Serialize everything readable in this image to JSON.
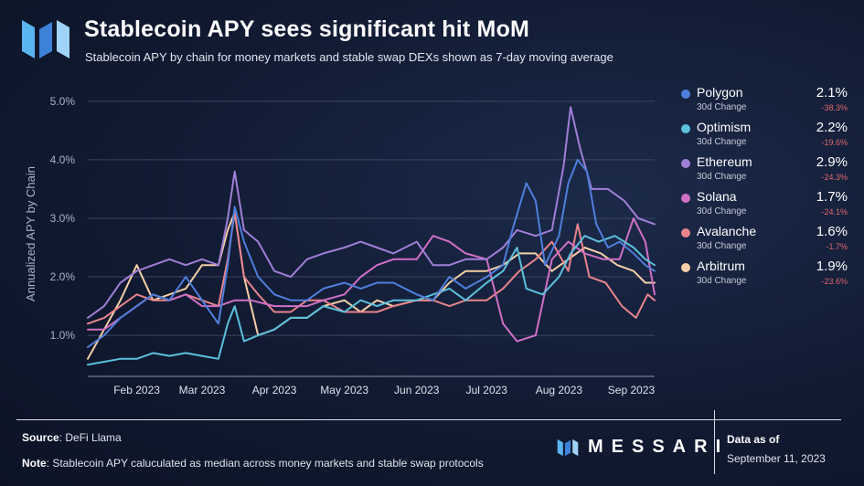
{
  "header": {
    "title": "Stablecoin APY sees significant hit MoM",
    "subtitle": "Stablecoin APY by chain for money markets and stable swap DEXs shown as 7-day moving average"
  },
  "colors": {
    "Polygon": "#4f7fdc",
    "Optimism": "#5cc0dc",
    "Ethereum": "#a07fd6",
    "Solana": "#d070c6",
    "Avalanche": "#e8848c",
    "Arbitrum": "#f4cfa8",
    "negative": "#e0676c"
  },
  "legend": [
    {
      "name": "Polygon",
      "value": "2.1%",
      "sublabel": "30d Change",
      "change": "-38.3%"
    },
    {
      "name": "Optimism",
      "value": "2.2%",
      "sublabel": "30d Change",
      "change": "-19.6%"
    },
    {
      "name": "Ethereum",
      "value": "2.9%",
      "sublabel": "30d Change",
      "change": "-24.3%"
    },
    {
      "name": "Solana",
      "value": "1.7%",
      "sublabel": "30d Change",
      "change": "-24.1%"
    },
    {
      "name": "Avalanche",
      "value": "1.6%",
      "sublabel": "30d Change",
      "change": "-1.7%"
    },
    {
      "name": "Arbitrum",
      "value": "1.9%",
      "sublabel": "30d Change",
      "change": "-23.6%"
    }
  ],
  "footer": {
    "source_label": "Source",
    "source_text": ": DeFi Llama",
    "note_label": "Note",
    "note_text": ": Stablecoin APY caluculated as median across money markets and stable swap protocols",
    "brand": "MESSARI",
    "asof_label": "Data as of",
    "asof_date": "September 11, 2023"
  },
  "chart_data": {
    "type": "line",
    "title": "Stablecoin APY sees significant hit MoM",
    "ylabel": "Annualized APY by Chain",
    "xlabel": "",
    "ylim": [
      0.3,
      5.2
    ],
    "yticks": [
      1.0,
      2.0,
      3.0,
      4.0,
      5.0
    ],
    "ytick_labels": [
      "1.0%",
      "2.0%",
      "3.0%",
      "4.0%",
      "5.0%"
    ],
    "xlim": [
      "2023-01-11",
      "2023-09-11"
    ],
    "xticks": [
      "2023-02-01",
      "2023-03-01",
      "2023-04-01",
      "2023-05-01",
      "2023-06-01",
      "2023-07-01",
      "2023-08-01",
      "2023-09-01"
    ],
    "xtick_labels": [
      "Feb 2023",
      "Mar 2023",
      "Apr 2023",
      "May 2023",
      "Jun 2023",
      "Jul 2023",
      "Aug 2023",
      "Sep 2023"
    ],
    "grid": "horizontal",
    "legend_position": "right",
    "series": [
      {
        "name": "Polygon",
        "points": [
          [
            "2023-01-11",
            0.8
          ],
          [
            "2023-01-18",
            1.0
          ],
          [
            "2023-01-25",
            1.3
          ],
          [
            "2023-02-01",
            1.5
          ],
          [
            "2023-02-08",
            1.7
          ],
          [
            "2023-02-15",
            1.6
          ],
          [
            "2023-02-22",
            2.0
          ],
          [
            "2023-03-01",
            1.6
          ],
          [
            "2023-03-08",
            1.2
          ],
          [
            "2023-03-12",
            2.2
          ],
          [
            "2023-03-15",
            3.2
          ],
          [
            "2023-03-19",
            2.6
          ],
          [
            "2023-03-25",
            2.0
          ],
          [
            "2023-04-01",
            1.7
          ],
          [
            "2023-04-08",
            1.6
          ],
          [
            "2023-04-15",
            1.6
          ],
          [
            "2023-04-22",
            1.8
          ],
          [
            "2023-05-01",
            1.9
          ],
          [
            "2023-05-08",
            1.8
          ],
          [
            "2023-05-15",
            1.9
          ],
          [
            "2023-05-22",
            1.9
          ],
          [
            "2023-06-01",
            1.7
          ],
          [
            "2023-06-08",
            1.6
          ],
          [
            "2023-06-15",
            2.0
          ],
          [
            "2023-06-22",
            1.8
          ],
          [
            "2023-07-01",
            2.0
          ],
          [
            "2023-07-08",
            2.2
          ],
          [
            "2023-07-12",
            2.8
          ],
          [
            "2023-07-18",
            3.6
          ],
          [
            "2023-07-22",
            3.3
          ],
          [
            "2023-07-26",
            2.2
          ],
          [
            "2023-08-01",
            2.7
          ],
          [
            "2023-08-05",
            3.6
          ],
          [
            "2023-08-09",
            4.0
          ],
          [
            "2023-08-13",
            3.8
          ],
          [
            "2023-08-17",
            2.9
          ],
          [
            "2023-08-22",
            2.5
          ],
          [
            "2023-08-27",
            2.6
          ],
          [
            "2023-09-02",
            2.4
          ],
          [
            "2023-09-07",
            2.2
          ],
          [
            "2023-09-11",
            2.1
          ]
        ]
      },
      {
        "name": "Optimism",
        "points": [
          [
            "2023-01-11",
            0.5
          ],
          [
            "2023-01-18",
            0.55
          ],
          [
            "2023-01-25",
            0.6
          ],
          [
            "2023-02-01",
            0.6
          ],
          [
            "2023-02-08",
            0.7
          ],
          [
            "2023-02-15",
            0.65
          ],
          [
            "2023-02-22",
            0.7
          ],
          [
            "2023-03-01",
            0.65
          ],
          [
            "2023-03-08",
            0.6
          ],
          [
            "2023-03-12",
            1.2
          ],
          [
            "2023-03-15",
            1.5
          ],
          [
            "2023-03-19",
            0.9
          ],
          [
            "2023-03-25",
            1.0
          ],
          [
            "2023-04-01",
            1.1
          ],
          [
            "2023-04-08",
            1.3
          ],
          [
            "2023-04-15",
            1.3
          ],
          [
            "2023-04-22",
            1.5
          ],
          [
            "2023-05-01",
            1.4
          ],
          [
            "2023-05-08",
            1.6
          ],
          [
            "2023-05-15",
            1.5
          ],
          [
            "2023-05-22",
            1.6
          ],
          [
            "2023-06-01",
            1.6
          ],
          [
            "2023-06-08",
            1.7
          ],
          [
            "2023-06-15",
            1.8
          ],
          [
            "2023-06-22",
            1.6
          ],
          [
            "2023-07-01",
            1.9
          ],
          [
            "2023-07-08",
            2.1
          ],
          [
            "2023-07-14",
            2.5
          ],
          [
            "2023-07-18",
            1.8
          ],
          [
            "2023-07-25",
            1.7
          ],
          [
            "2023-08-01",
            2.0
          ],
          [
            "2023-08-06",
            2.4
          ],
          [
            "2023-08-12",
            2.7
          ],
          [
            "2023-08-18",
            2.6
          ],
          [
            "2023-08-25",
            2.7
          ],
          [
            "2023-09-02",
            2.5
          ],
          [
            "2023-09-07",
            2.3
          ],
          [
            "2023-09-11",
            2.2
          ]
        ]
      },
      {
        "name": "Ethereum",
        "points": [
          [
            "2023-01-11",
            1.3
          ],
          [
            "2023-01-18",
            1.5
          ],
          [
            "2023-01-25",
            1.9
          ],
          [
            "2023-02-01",
            2.1
          ],
          [
            "2023-02-08",
            2.2
          ],
          [
            "2023-02-15",
            2.3
          ],
          [
            "2023-02-22",
            2.2
          ],
          [
            "2023-03-01",
            2.3
          ],
          [
            "2023-03-08",
            2.2
          ],
          [
            "2023-03-12",
            3.0
          ],
          [
            "2023-03-15",
            3.8
          ],
          [
            "2023-03-19",
            2.8
          ],
          [
            "2023-03-25",
            2.6
          ],
          [
            "2023-04-01",
            2.1
          ],
          [
            "2023-04-08",
            2.0
          ],
          [
            "2023-04-15",
            2.3
          ],
          [
            "2023-04-22",
            2.4
          ],
          [
            "2023-05-01",
            2.5
          ],
          [
            "2023-05-08",
            2.6
          ],
          [
            "2023-05-15",
            2.5
          ],
          [
            "2023-05-22",
            2.4
          ],
          [
            "2023-06-01",
            2.6
          ],
          [
            "2023-06-08",
            2.2
          ],
          [
            "2023-06-15",
            2.2
          ],
          [
            "2023-06-22",
            2.3
          ],
          [
            "2023-07-01",
            2.3
          ],
          [
            "2023-07-08",
            2.5
          ],
          [
            "2023-07-14",
            2.8
          ],
          [
            "2023-07-22",
            2.7
          ],
          [
            "2023-07-29",
            2.8
          ],
          [
            "2023-08-03",
            3.9
          ],
          [
            "2023-08-06",
            4.9
          ],
          [
            "2023-08-10",
            4.2
          ],
          [
            "2023-08-15",
            3.5
          ],
          [
            "2023-08-22",
            3.5
          ],
          [
            "2023-08-29",
            3.3
          ],
          [
            "2023-09-04",
            3.0
          ],
          [
            "2023-09-11",
            2.9
          ]
        ]
      },
      {
        "name": "Solana",
        "points": [
          [
            "2023-01-11",
            1.1
          ],
          [
            "2023-01-18",
            1.1
          ],
          [
            "2023-01-25",
            1.3
          ],
          [
            "2023-02-01",
            1.5
          ],
          [
            "2023-02-08",
            1.7
          ],
          [
            "2023-02-15",
            1.6
          ],
          [
            "2023-02-22",
            1.7
          ],
          [
            "2023-03-01",
            1.5
          ],
          [
            "2023-03-08",
            1.5
          ],
          [
            "2023-03-15",
            1.6
          ],
          [
            "2023-03-22",
            1.6
          ],
          [
            "2023-04-01",
            1.5
          ],
          [
            "2023-04-08",
            1.5
          ],
          [
            "2023-04-15",
            1.5
          ],
          [
            "2023-04-22",
            1.6
          ],
          [
            "2023-05-01",
            1.7
          ],
          [
            "2023-05-08",
            2.0
          ],
          [
            "2023-05-15",
            2.2
          ],
          [
            "2023-05-22",
            2.3
          ],
          [
            "2023-06-01",
            2.3
          ],
          [
            "2023-06-08",
            2.7
          ],
          [
            "2023-06-15",
            2.6
          ],
          [
            "2023-06-22",
            2.4
          ],
          [
            "2023-07-01",
            2.3
          ],
          [
            "2023-07-08",
            1.2
          ],
          [
            "2023-07-14",
            0.9
          ],
          [
            "2023-07-22",
            1.0
          ],
          [
            "2023-07-29",
            2.3
          ],
          [
            "2023-08-05",
            2.6
          ],
          [
            "2023-08-12",
            2.4
          ],
          [
            "2023-08-20",
            2.3
          ],
          [
            "2023-08-27",
            2.3
          ],
          [
            "2023-09-02",
            3.0
          ],
          [
            "2023-09-07",
            2.6
          ],
          [
            "2023-09-11",
            1.7
          ]
        ]
      },
      {
        "name": "Avalanche",
        "points": [
          [
            "2023-01-11",
            1.2
          ],
          [
            "2023-01-18",
            1.3
          ],
          [
            "2023-01-25",
            1.5
          ],
          [
            "2023-02-01",
            1.7
          ],
          [
            "2023-02-08",
            1.6
          ],
          [
            "2023-02-15",
            1.6
          ],
          [
            "2023-02-22",
            1.7
          ],
          [
            "2023-03-01",
            1.6
          ],
          [
            "2023-03-08",
            1.5
          ],
          [
            "2023-03-12",
            2.3
          ],
          [
            "2023-03-15",
            3.1
          ],
          [
            "2023-03-19",
            2.0
          ],
          [
            "2023-03-25",
            1.7
          ],
          [
            "2023-04-01",
            1.4
          ],
          [
            "2023-04-08",
            1.4
          ],
          [
            "2023-04-15",
            1.6
          ],
          [
            "2023-04-22",
            1.6
          ],
          [
            "2023-05-01",
            1.4
          ],
          [
            "2023-05-08",
            1.4
          ],
          [
            "2023-05-15",
            1.4
          ],
          [
            "2023-05-22",
            1.5
          ],
          [
            "2023-06-01",
            1.6
          ],
          [
            "2023-06-08",
            1.6
          ],
          [
            "2023-06-15",
            1.5
          ],
          [
            "2023-06-22",
            1.6
          ],
          [
            "2023-07-01",
            1.6
          ],
          [
            "2023-07-08",
            1.8
          ],
          [
            "2023-07-15",
            2.1
          ],
          [
            "2023-07-22",
            2.3
          ],
          [
            "2023-07-29",
            2.6
          ],
          [
            "2023-08-05",
            2.1
          ],
          [
            "2023-08-09",
            2.9
          ],
          [
            "2023-08-14",
            2.0
          ],
          [
            "2023-08-21",
            1.9
          ],
          [
            "2023-08-28",
            1.5
          ],
          [
            "2023-09-03",
            1.3
          ],
          [
            "2023-09-08",
            1.7
          ],
          [
            "2023-09-11",
            1.6
          ]
        ]
      },
      {
        "name": "Arbitrum",
        "points": [
          [
            "2023-01-11",
            0.6
          ],
          [
            "2023-01-18",
            1.1
          ],
          [
            "2023-01-25",
            1.6
          ],
          [
            "2023-02-01",
            2.2
          ],
          [
            "2023-02-08",
            1.6
          ],
          [
            "2023-02-15",
            1.7
          ],
          [
            "2023-02-22",
            1.8
          ],
          [
            "2023-03-01",
            2.2
          ],
          [
            "2023-03-08",
            2.2
          ],
          [
            "2023-03-12",
            2.8
          ],
          [
            "2023-03-15",
            3.1
          ],
          [
            "2023-03-19",
            2.0
          ],
          [
            "2023-03-25",
            1.0
          ],
          [
            "2023-04-01",
            1.1
          ],
          [
            "2023-04-08",
            1.3
          ],
          [
            "2023-04-15",
            1.3
          ],
          [
            "2023-04-22",
            1.5
          ],
          [
            "2023-05-01",
            1.6
          ],
          [
            "2023-05-08",
            1.4
          ],
          [
            "2023-05-15",
            1.6
          ],
          [
            "2023-05-22",
            1.5
          ],
          [
            "2023-06-01",
            1.6
          ],
          [
            "2023-06-08",
            1.6
          ],
          [
            "2023-06-15",
            1.9
          ],
          [
            "2023-06-22",
            2.1
          ],
          [
            "2023-07-01",
            2.1
          ],
          [
            "2023-07-08",
            2.2
          ],
          [
            "2023-07-15",
            2.4
          ],
          [
            "2023-07-22",
            2.4
          ],
          [
            "2023-07-29",
            2.1
          ],
          [
            "2023-08-05",
            2.3
          ],
          [
            "2023-08-12",
            2.5
          ],
          [
            "2023-08-19",
            2.4
          ],
          [
            "2023-08-26",
            2.2
          ],
          [
            "2023-09-02",
            2.1
          ],
          [
            "2023-09-07",
            1.9
          ],
          [
            "2023-09-11",
            1.9
          ]
        ]
      }
    ]
  }
}
